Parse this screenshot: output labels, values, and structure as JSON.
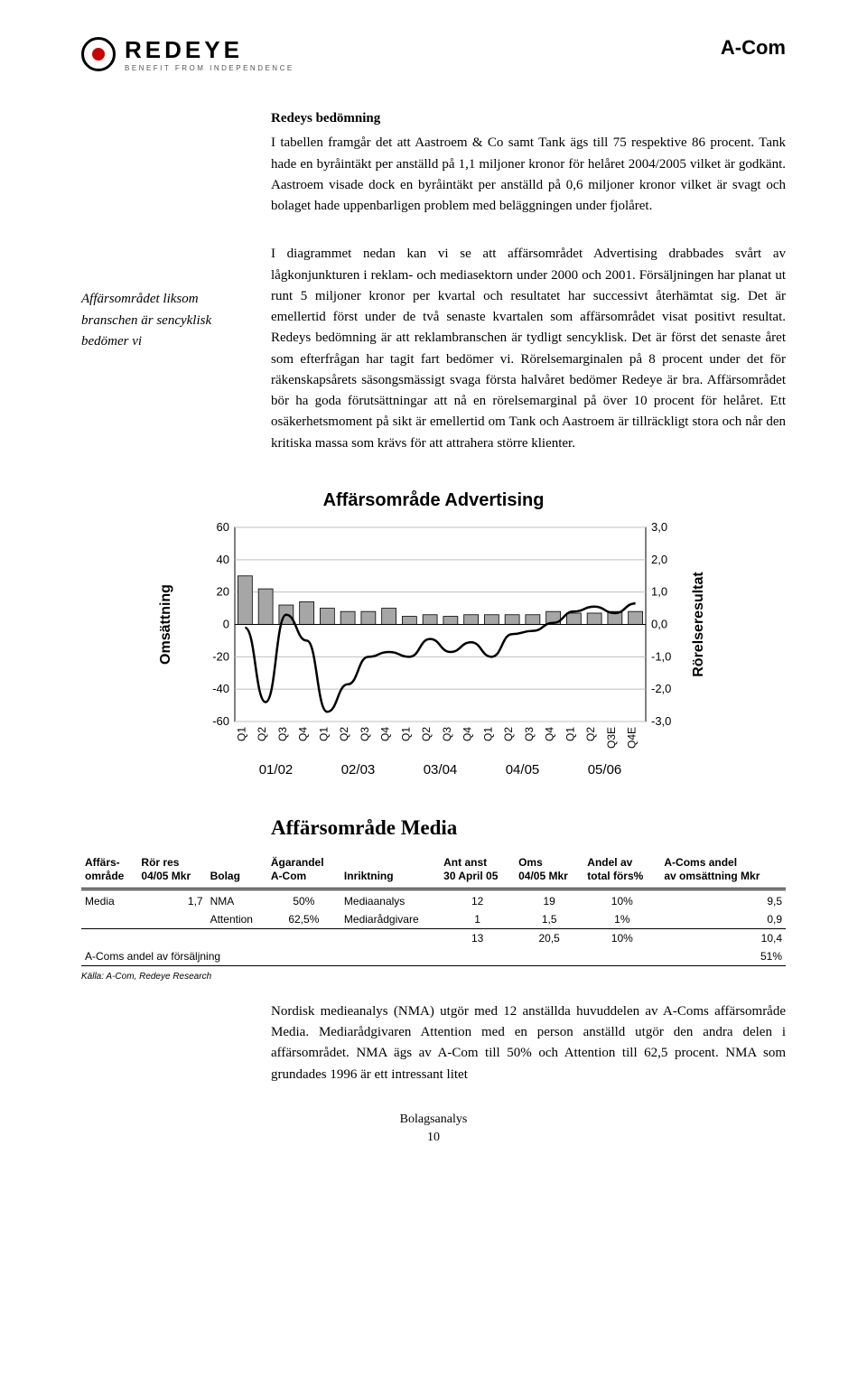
{
  "header": {
    "logo_title": "REDEYE",
    "logo_sub": "BENEFIT FROM INDEPENDENCE",
    "doc_title": "A-Com"
  },
  "section1": {
    "heading": "Redeys bedömning",
    "body": "I tabellen framgår det att Aastroem & Co samt Tank ägs till 75 respektive 86 procent. Tank hade en byråintäkt per anställd på 1,1 miljoner kronor för helåret 2004/2005 vilket är godkänt. Aastroem visade dock en byråintäkt per anställd på 0,6 miljoner kronor vilket är svagt och bolaget hade uppenbarligen problem med beläggningen under fjolåret."
  },
  "sidenote": "Affärsområdet liksom branschen är sencyklisk bedömer vi",
  "section2": {
    "body": "I diagrammet nedan kan vi se att affärsområdet Advertising drabbades svårt av lågkonjunkturen i reklam- och mediasektorn under 2000 och 2001. Försäljningen har planat ut runt 5 miljoner kronor per kvartal och resultatet har successivt återhämtat sig. Det är emellertid först under de två senaste kvartalen som affärsområdet visat positivt resultat. Redeys bedömning är att reklambranschen är tydligt sencyklisk. Det är först det senaste året som efterfrågan har tagit fart bedömer vi. Rörelsemarginalen på 8 procent under det för räkenskapsårets säsongsmässigt svaga första halvåret bedömer Redeye är bra. Affärsområdet bör ha goda förutsättningar att nå en rörelsemarginal på över 10 procent för helåret. Ett osäkerhetsmoment på sikt är emellertid om Tank och Aastroem är tillräckligt stora och når den kritiska massa som krävs för att attrahera större klienter."
  },
  "chart": {
    "title": "Affärsområde Advertising",
    "left_label": "Omsättning",
    "right_label": "Rörelseresultat",
    "y_left": {
      "min": -60,
      "max": 60,
      "step": 20,
      "ticks": [
        -60,
        -40,
        -20,
        0,
        20,
        40,
        60
      ]
    },
    "y_right": {
      "min": -3.0,
      "max": 3.0,
      "step": 1.0,
      "ticks": [
        "-3,0",
        "-2,0",
        "-1,0",
        "0,0",
        "1,0",
        "2,0",
        "3,0"
      ]
    },
    "x_labels": [
      "Q1",
      "Q2",
      "Q3",
      "Q4",
      "Q1",
      "Q2",
      "Q3",
      "Q4",
      "Q1",
      "Q2",
      "Q3",
      "Q4",
      "Q1",
      "Q2",
      "Q3",
      "Q4",
      "Q1",
      "Q2",
      "Q3E",
      "Q4E"
    ],
    "x_groups": [
      "01/02",
      "02/03",
      "03/04",
      "04/05",
      "05/06"
    ],
    "bars": [
      30,
      22,
      12,
      14,
      10,
      8,
      8,
      10,
      5,
      6,
      5,
      6,
      6,
      6,
      6,
      8,
      7,
      7,
      8,
      8
    ],
    "line": [
      -0.1,
      -2.4,
      0.3,
      -0.5,
      -2.7,
      -1.85,
      -1.0,
      -0.85,
      -1.0,
      -0.45,
      -0.85,
      -0.55,
      -1.0,
      -0.3,
      -0.2,
      0.05,
      0.4,
      0.55,
      0.35,
      0.65
    ],
    "bar_color": "#a6a6a6",
    "bar_border": "#000000",
    "line_color": "#000000",
    "grid_color": "#bfbfbf",
    "axis_color": "#000000",
    "bg": "#ffffff",
    "font_size_ticks": 13,
    "font_size_groups": 15
  },
  "media_heading": "Affärsområde Media",
  "table": {
    "columns": [
      "Affärs-\nområde",
      "Rör res\n04/05 Mkr",
      "Bolag",
      "Ägarandel\nA-Com",
      "Inriktning",
      "Ant anst\n30 April 05",
      "Oms\n04/05 Mkr",
      "Andel av\ntotal förs%",
      "A-Coms andel\nav omsättning Mkr"
    ],
    "rows": [
      [
        "Media",
        "1,7",
        "NMA",
        "50%",
        "Mediaanalys",
        "12",
        "19",
        "10%",
        "9,5"
      ],
      [
        "",
        "",
        "Attention",
        "62,5%",
        "Mediarådgivare",
        "1",
        "1,5",
        "1%",
        "0,9"
      ],
      [
        "",
        "",
        "",
        "",
        "",
        "13",
        "20,5",
        "10%",
        "10,4"
      ]
    ],
    "footer_label": "A-Coms andel av försäljning",
    "footer_value": "51%",
    "source": "Källa: A-Com, Redeye Research"
  },
  "bottom_para": "Nordisk medieanalys (NMA) utgör med 12 anställda huvuddelen av A-Coms affärsområde Media. Mediarådgivaren Attention med en person anställd utgör den andra delen i affärsområdet. NMA ägs av A-Com till 50% och Attention till 62,5 procent. NMA som grundades 1996 är ett intressant litet",
  "footer": {
    "line1": "Bolagsanalys",
    "line2": "10"
  }
}
